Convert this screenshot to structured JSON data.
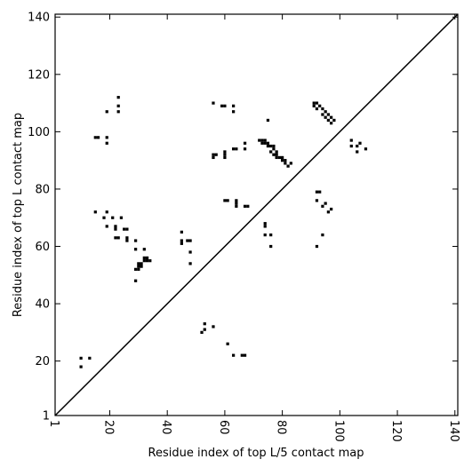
{
  "chart_data": {
    "type": "scatter",
    "xlabel": "Residue index of top L/5 contact map",
    "ylabel": "Residue index of top L contact map",
    "xlim": [
      1,
      141
    ],
    "ylim": [
      1,
      141
    ],
    "x_ticks": [
      {
        "v": 1,
        "t": "1"
      },
      {
        "v": 20,
        "t": "20"
      },
      {
        "v": 40,
        "t": "40"
      },
      {
        "v": 60,
        "t": "60"
      },
      {
        "v": 80,
        "t": "80"
      },
      {
        "v": 100,
        "t": "100"
      },
      {
        "v": 120,
        "t": "120"
      },
      {
        "v": 140,
        "t": "140"
      }
    ],
    "y_ticks": [
      {
        "v": 1,
        "t": "1"
      },
      {
        "v": 20,
        "t": "20"
      },
      {
        "v": 40,
        "t": "40"
      },
      {
        "v": 60,
        "t": "60"
      },
      {
        "v": 80,
        "t": "80"
      },
      {
        "v": 100,
        "t": "100"
      },
      {
        "v": 120,
        "t": "120"
      },
      {
        "v": 140,
        "t": "140"
      }
    ],
    "diagonal": true,
    "marker_color": "#000000",
    "points": [
      [
        10,
        21
      ],
      [
        10,
        18
      ],
      [
        13,
        21
      ],
      [
        15,
        98
      ],
      [
        16,
        98
      ],
      [
        19,
        98
      ],
      [
        19,
        96
      ],
      [
        19,
        107
      ],
      [
        23,
        112
      ],
      [
        23,
        109
      ],
      [
        23,
        107
      ],
      [
        15,
        72
      ],
      [
        18,
        70
      ],
      [
        19,
        72
      ],
      [
        19,
        67
      ],
      [
        21,
        70
      ],
      [
        22,
        67
      ],
      [
        22,
        66
      ],
      [
        22,
        63
      ],
      [
        23,
        63
      ],
      [
        24,
        70
      ],
      [
        25,
        66
      ],
      [
        26,
        66
      ],
      [
        26,
        63
      ],
      [
        26,
        62
      ],
      [
        29,
        62
      ],
      [
        29,
        59
      ],
      [
        29,
        48
      ],
      [
        29,
        52
      ],
      [
        30,
        52
      ],
      [
        30,
        53
      ],
      [
        30,
        54
      ],
      [
        31,
        53
      ],
      [
        31,
        54
      ],
      [
        32,
        59
      ],
      [
        32,
        55
      ],
      [
        32,
        56
      ],
      [
        33,
        55
      ],
      [
        33,
        56
      ],
      [
        34,
        55
      ],
      [
        45,
        65
      ],
      [
        45,
        62
      ],
      [
        45,
        61
      ],
      [
        47,
        62
      ],
      [
        48,
        62
      ],
      [
        48,
        58
      ],
      [
        48,
        54
      ],
      [
        52,
        30
      ],
      [
        53,
        33
      ],
      [
        53,
        31
      ],
      [
        56,
        32
      ],
      [
        61,
        26
      ],
      [
        63,
        22
      ],
      [
        66,
        22
      ],
      [
        67,
        22
      ],
      [
        56,
        110
      ],
      [
        56,
        92
      ],
      [
        56,
        91
      ],
      [
        57,
        92
      ],
      [
        59,
        109
      ],
      [
        60,
        109
      ],
      [
        60,
        92
      ],
      [
        60,
        91
      ],
      [
        60,
        93
      ],
      [
        63,
        109
      ],
      [
        63,
        107
      ],
      [
        63,
        94
      ],
      [
        64,
        94
      ],
      [
        60,
        76
      ],
      [
        61,
        76
      ],
      [
        64,
        76
      ],
      [
        64,
        75
      ],
      [
        64,
        74
      ],
      [
        67,
        74
      ],
      [
        68,
        74
      ],
      [
        67,
        96
      ],
      [
        67,
        94
      ],
      [
        72,
        97
      ],
      [
        73,
        97
      ],
      [
        73,
        96
      ],
      [
        74,
        97
      ],
      [
        74,
        96
      ],
      [
        75,
        95
      ],
      [
        75,
        96
      ],
      [
        76,
        95
      ],
      [
        77,
        94
      ],
      [
        77,
        95
      ],
      [
        76,
        93
      ],
      [
        77,
        92
      ],
      [
        78,
        92
      ],
      [
        78,
        93
      ],
      [
        78,
        91
      ],
      [
        79,
        91
      ],
      [
        80,
        90
      ],
      [
        80,
        91
      ],
      [
        81,
        89
      ],
      [
        81,
        90
      ],
      [
        82,
        88
      ],
      [
        83,
        89
      ],
      [
        75,
        104
      ],
      [
        74,
        68
      ],
      [
        74,
        67
      ],
      [
        74,
        64
      ],
      [
        76,
        64
      ],
      [
        76,
        60
      ],
      [
        91,
        110
      ],
      [
        91,
        109
      ],
      [
        92,
        110
      ],
      [
        92,
        108
      ],
      [
        93,
        109
      ],
      [
        94,
        108
      ],
      [
        94,
        106
      ],
      [
        95,
        107
      ],
      [
        95,
        105
      ],
      [
        96,
        106
      ],
      [
        96,
        104
      ],
      [
        97,
        105
      ],
      [
        97,
        103
      ],
      [
        98,
        104
      ],
      [
        92,
        79
      ],
      [
        93,
        79
      ],
      [
        92,
        76
      ],
      [
        94,
        74
      ],
      [
        95,
        75
      ],
      [
        96,
        72
      ],
      [
        97,
        73
      ],
      [
        92,
        60
      ],
      [
        94,
        64
      ],
      [
        104,
        97
      ],
      [
        104,
        95
      ],
      [
        106,
        95
      ],
      [
        106,
        93
      ],
      [
        107,
        96
      ],
      [
        109,
        94
      ]
    ]
  }
}
